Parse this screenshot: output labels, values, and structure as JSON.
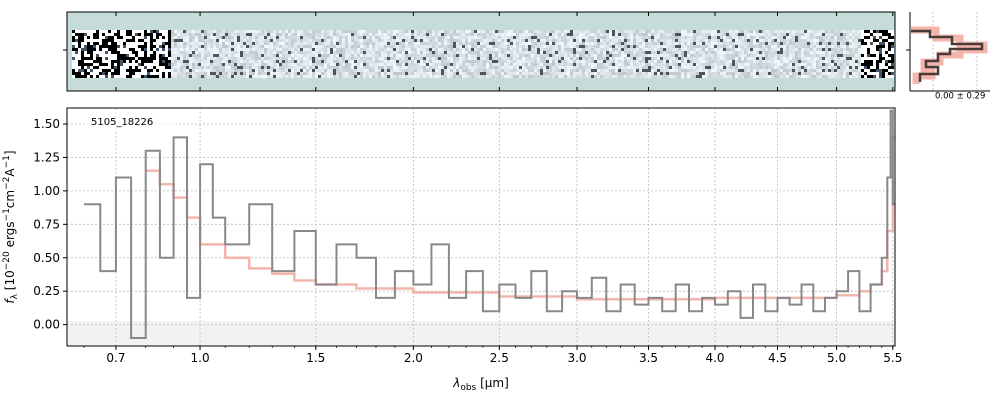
{
  "chart_data": [
    {
      "type": "heatmap",
      "panel": "2d-spectrum",
      "colormap": [
        "#1b2a3a",
        "#ffffff"
      ],
      "background_color": "#c5dcdb",
      "note": ""
    },
    {
      "type": "step",
      "panel": "cross-dispersion-profile",
      "annotation": "0.00 ± 0.29",
      "colors": {
        "profile": "#4a3a3a",
        "model": "#f4b5ad"
      }
    },
    {
      "type": "line",
      "panel": "1d-spectrum",
      "label": "5105_18226",
      "xlabel": "λ_obs [μm]",
      "ylabel": "f_λ [10^−20 ergs^−1cm^−2A^−1]",
      "x_tick_labels": [
        "0.7",
        "1.0",
        "1.5",
        "2.0",
        "2.5",
        "3.0",
        "3.5",
        "4.0",
        "4.5",
        "5.0",
        "5.5"
      ],
      "x_tick_values": [
        0.7,
        1.0,
        1.5,
        2.0,
        2.5,
        3.0,
        3.5,
        4.0,
        4.5,
        5.0,
        5.5
      ],
      "y_tick_labels": [
        "0.00",
        "0.25",
        "0.50",
        "0.75",
        "1.00",
        "1.25",
        "1.50"
      ],
      "y_tick_values": [
        0.0,
        0.25,
        0.5,
        0.75,
        1.0,
        1.25,
        1.5
      ],
      "xlim": [
        0.55,
        5.52
      ],
      "ylim": [
        -0.16,
        1.62
      ],
      "grid": true,
      "series": [
        {
          "name": "data",
          "color": "#888888",
          "x": [
            0.6,
            0.65,
            0.7,
            0.75,
            0.8,
            0.85,
            0.9,
            0.95,
            1.0,
            1.05,
            1.1,
            1.2,
            1.3,
            1.4,
            1.5,
            1.6,
            1.7,
            1.8,
            1.9,
            2.0,
            2.1,
            2.2,
            2.3,
            2.4,
            2.5,
            2.6,
            2.7,
            2.8,
            2.9,
            3.0,
            3.1,
            3.2,
            3.3,
            3.4,
            3.5,
            3.6,
            3.7,
            3.8,
            3.9,
            4.0,
            4.1,
            4.2,
            4.3,
            4.4,
            4.5,
            4.6,
            4.7,
            4.8,
            4.9,
            5.0,
            5.1,
            5.2,
            5.3,
            5.4,
            5.45,
            5.48,
            5.5
          ],
          "y": [
            0.9,
            0.4,
            1.1,
            -0.1,
            1.3,
            0.5,
            1.4,
            0.2,
            1.2,
            0.8,
            0.6,
            0.9,
            0.4,
            0.7,
            0.3,
            0.6,
            0.5,
            0.2,
            0.4,
            0.3,
            0.6,
            0.2,
            0.4,
            0.1,
            0.3,
            0.2,
            0.4,
            0.1,
            0.25,
            0.2,
            0.35,
            0.1,
            0.3,
            0.15,
            0.2,
            0.1,
            0.3,
            0.1,
            0.2,
            0.15,
            0.25,
            0.05,
            0.3,
            0.1,
            0.2,
            0.15,
            0.3,
            0.1,
            0.2,
            0.25,
            0.4,
            0.1,
            0.3,
            0.5,
            1.1,
            1.6,
            0.9
          ]
        },
        {
          "name": "model",
          "color": "#f4b5ad",
          "x": [
            0.8,
            0.85,
            0.9,
            0.95,
            1.0,
            1.1,
            1.2,
            1.3,
            1.4,
            1.5,
            1.7,
            2.0,
            2.5,
            3.0,
            3.5,
            4.0,
            4.5,
            5.0,
            5.2,
            5.3,
            5.4,
            5.45,
            5.5
          ],
          "y": [
            1.15,
            1.05,
            0.95,
            0.8,
            0.6,
            0.5,
            0.42,
            0.38,
            0.33,
            0.3,
            0.27,
            0.24,
            0.21,
            0.19,
            0.19,
            0.2,
            0.2,
            0.22,
            0.25,
            0.3,
            0.4,
            0.7,
            1.4
          ]
        }
      ]
    }
  ]
}
